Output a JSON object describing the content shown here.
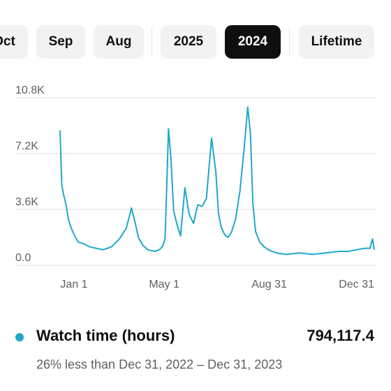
{
  "filters": {
    "chips": [
      {
        "label": "Oct",
        "active": false
      },
      {
        "label": "Sep",
        "active": false
      },
      {
        "label": "Aug",
        "active": false
      },
      {
        "label": "2025",
        "active": false
      },
      {
        "label": "2024",
        "active": true
      },
      {
        "label": "Lifetime",
        "active": false
      }
    ]
  },
  "colors": {
    "series": "#1fa8c9",
    "active_chip": "#0f0f0f",
    "chip_bg": "#f2f2f2"
  },
  "chart_data": {
    "type": "line",
    "title": "",
    "xlabel": "",
    "ylabel": "",
    "ylim": [
      0,
      10800
    ],
    "y_ticks": [
      "0.0",
      "3.6K",
      "7.2K",
      "10.8K"
    ],
    "y_tick_values": [
      0,
      3600,
      7200,
      10800
    ],
    "x_ticks": [
      "Jan 1",
      "May 1",
      "Aug 31",
      "Dec 31"
    ],
    "x_tick_values": [
      "2024-01-01",
      "2024-05-01",
      "2024-08-31",
      "2024-12-31"
    ],
    "grid": true,
    "series": [
      {
        "name": "Watch time (hours)",
        "x": [
          "2024-01-01",
          "2024-01-03",
          "2024-01-05",
          "2024-01-08",
          "2024-01-11",
          "2024-01-14",
          "2024-01-18",
          "2024-01-22",
          "2024-01-28",
          "2024-02-04",
          "2024-02-12",
          "2024-02-20",
          "2024-03-01",
          "2024-03-10",
          "2024-03-18",
          "2024-03-24",
          "2024-03-28",
          "2024-04-01",
          "2024-04-06",
          "2024-04-12",
          "2024-04-20",
          "2024-04-25",
          "2024-04-29",
          "2024-05-02",
          "2024-05-04",
          "2024-05-06",
          "2024-05-09",
          "2024-05-12",
          "2024-05-16",
          "2024-05-20",
          "2024-05-25",
          "2024-05-30",
          "2024-06-04",
          "2024-06-09",
          "2024-06-14",
          "2024-06-19",
          "2024-06-25",
          "2024-06-30",
          "2024-07-03",
          "2024-07-06",
          "2024-07-10",
          "2024-07-14",
          "2024-07-18",
          "2024-07-23",
          "2024-07-28",
          "2024-08-02",
          "2024-08-06",
          "2024-08-09",
          "2024-08-12",
          "2024-08-15",
          "2024-08-20",
          "2024-08-25",
          "2024-08-30",
          "2024-09-08",
          "2024-09-20",
          "2024-10-05",
          "2024-10-20",
          "2024-11-05",
          "2024-11-20",
          "2024-12-01",
          "2024-12-10",
          "2024-12-20",
          "2024-12-26",
          "2024-12-29",
          "2024-12-31"
        ],
        "values": [
          8700,
          5200,
          4600,
          3900,
          2900,
          2400,
          1900,
          1500,
          1400,
          1200,
          1100,
          1000,
          1200,
          1700,
          2400,
          3700,
          2800,
          1800,
          1300,
          1000,
          900,
          1000,
          1200,
          1700,
          5200,
          8800,
          6800,
          3500,
          2600,
          1900,
          5000,
          3300,
          2700,
          3900,
          3800,
          4300,
          8200,
          6000,
          3400,
          2500,
          2000,
          1800,
          2100,
          3000,
          4800,
          7600,
          10200,
          8600,
          4000,
          2200,
          1500,
          1200,
          1000,
          800,
          700,
          800,
          700,
          800,
          900,
          900,
          1000,
          1100,
          1100,
          1700,
          1000
        ]
      }
    ]
  },
  "legend": {
    "metric_label": "Watch time (hours)",
    "metric_value": "794,117.4",
    "comparison": "26% less than Dec 31, 2022 – Dec 31, 2023"
  }
}
